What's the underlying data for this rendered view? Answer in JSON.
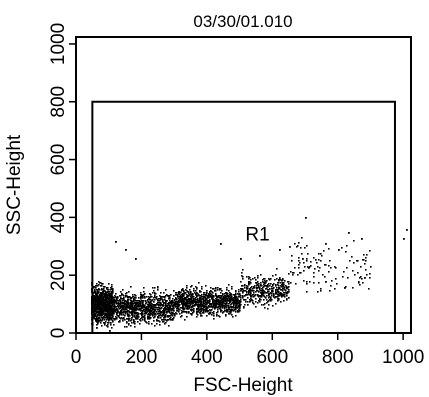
{
  "chart_data": {
    "type": "scatter",
    "title": "03/30/01.010",
    "xlabel": "FSC-Height",
    "ylabel": "SSC-Height",
    "xlim": [
      0,
      1024
    ],
    "ylim": [
      0,
      1024
    ],
    "xticks": [
      0,
      200,
      400,
      600,
      800,
      1000
    ],
    "yticks": [
      0,
      200,
      400,
      600,
      800,
      1000
    ],
    "grid": false,
    "point_color": "#000000",
    "gate": {
      "name": "R1",
      "shape": "rectangle",
      "x_range": [
        50,
        975
      ],
      "y_range": [
        0,
        800
      ],
      "label_position": [
        555,
        320
      ]
    },
    "density_clusters": [
      {
        "x_range": [
          45,
          110
        ],
        "y_mean": 100,
        "y_spread": 55,
        "density": "high"
      },
      {
        "x_range": [
          110,
          300
        ],
        "y_mean": 90,
        "y_spread": 45,
        "density": "high"
      },
      {
        "x_range": [
          300,
          500
        ],
        "y_mean": 110,
        "y_spread": 40,
        "density": "high"
      },
      {
        "x_range": [
          500,
          650
        ],
        "y_mean": 150,
        "y_spread": 45,
        "density": "medium"
      },
      {
        "x_range": [
          650,
          900
        ],
        "y_mean": 230,
        "y_spread": 80,
        "density": "sparse"
      }
    ],
    "outliers": [
      {
        "x": 700,
        "y": 400
      },
      {
        "x": 760,
        "y": 310
      },
      {
        "x": 800,
        "y": 290
      },
      {
        "x": 830,
        "y": 350
      },
      {
        "x": 870,
        "y": 330
      },
      {
        "x": 880,
        "y": 195
      },
      {
        "x": 1000,
        "y": 330
      },
      {
        "x": 1010,
        "y": 360
      },
      {
        "x": 1020,
        "y": 410
      },
      {
        "x": 120,
        "y": 320
      },
      {
        "x": 150,
        "y": 290
      },
      {
        "x": 180,
        "y": 260
      },
      {
        "x": 440,
        "y": 310
      },
      {
        "x": 500,
        "y": 260
      },
      {
        "x": 560,
        "y": 270
      },
      {
        "x": 620,
        "y": 290
      },
      {
        "x": 650,
        "y": 300
      },
      {
        "x": 690,
        "y": 260
      },
      {
        "x": 710,
        "y": 230
      },
      {
        "x": 760,
        "y": 180
      },
      {
        "x": 820,
        "y": 160
      },
      {
        "x": 100,
        "y": 10
      },
      {
        "x": 60,
        "y": 20
      }
    ]
  }
}
